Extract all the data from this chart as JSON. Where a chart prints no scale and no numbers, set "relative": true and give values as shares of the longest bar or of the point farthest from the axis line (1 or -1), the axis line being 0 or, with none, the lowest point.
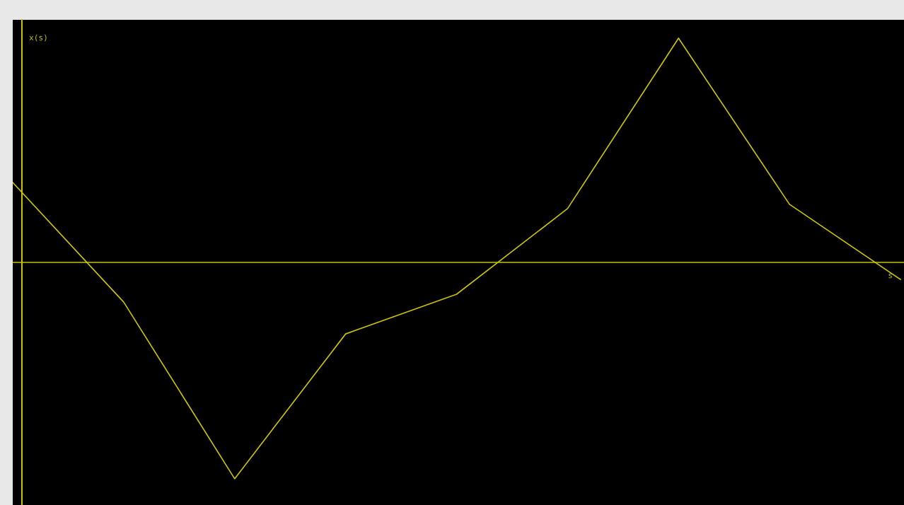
{
  "chart_data": {
    "type": "line",
    "relative": true,
    "xlabel": "s",
    "ylabel": "x(s)",
    "categories": [
      null,
      null,
      null,
      null,
      null,
      null,
      null,
      null,
      null
    ],
    "series": [
      {
        "color": "#c8c000",
        "values": [
          0.356,
          -0.177,
          -0.965,
          -0.319,
          -0.142,
          0.24,
          1,
          0.259,
          -0.076
        ]
      }
    ],
    "ref_lines": [
      {
        "axis": "y",
        "value": 0,
        "color": "#c8c000"
      }
    ],
    "marker": "none",
    "line_style": "solid"
  }
}
